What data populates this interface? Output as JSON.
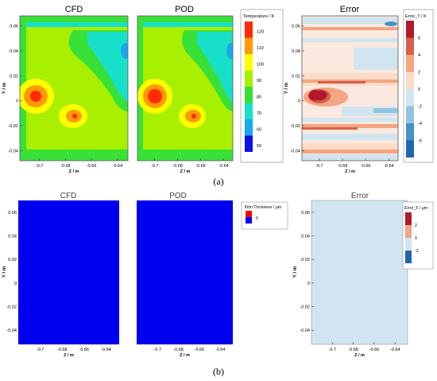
{
  "panel_a": {
    "label": "(a)",
    "titles": [
      "CFD",
      "POD",
      "Error"
    ],
    "xlabel": "Z / m",
    "ylabel": "Y / m",
    "xticks": [
      "-0.7",
      "-0.68",
      "-0.66",
      "-0.64"
    ],
    "yticks": [
      "0.06",
      "0.04",
      "0.02",
      "0",
      "-0.02",
      "-0.04"
    ],
    "xticks_error": [
      "-0.7",
      "-0.68",
      "-0.66",
      "-0.64"
    ],
    "legend_temperature": {
      "title": "Temperature / K",
      "labels": [
        "120",
        "110",
        "100",
        "90",
        "80",
        "70",
        "60",
        "50"
      ],
      "colors": [
        "#ff2a00",
        "#ff9a00",
        "#ffff00",
        "#a8f000",
        "#38e038",
        "#18e0c8",
        "#18a8f0",
        "#1010e8"
      ]
    },
    "legend_error": {
      "title": "Error_T / K",
      "labels": [
        "6",
        "4",
        "2",
        "0",
        "-2",
        "-4",
        "-6"
      ],
      "colors": [
        "#b2182b",
        "#d6604d",
        "#f4a582",
        "#fddbc7",
        "#d1e5f0",
        "#92c5de",
        "#4393c3",
        "#2166ac"
      ]
    }
  },
  "panel_b": {
    "label": "(b)",
    "titles": [
      "CFD",
      "POD",
      "Error"
    ],
    "xlabel": "Z / m",
    "ylabel": "Y / m",
    "xticks": [
      "-0.7",
      "-0.68",
      "-0.66",
      "-0.64"
    ],
    "yticks": [
      "0.06",
      "0.04",
      "0.02",
      "0",
      "-0.02",
      "-0.04"
    ],
    "legend_film": {
      "title": "Film Thickness / μm",
      "labels": [
        "0"
      ],
      "colors": [
        "#ff0000",
        "#0000ff"
      ]
    },
    "legend_error": {
      "title": "Error_F / μm",
      "labels": [
        "2",
        "0",
        "-2"
      ],
      "colors": [
        "#b2182b",
        "#f4a582",
        "#d1e5f0",
        "#2166ac"
      ]
    }
  },
  "chart_data": [
    {
      "type": "heatmap",
      "title": "CFD",
      "xlabel": "Z / m",
      "ylabel": "Y / m",
      "xlim": [
        -0.715,
        -0.632
      ],
      "ylim": [
        -0.048,
        0.068
      ],
      "colorbar": "Temperature / K",
      "hotspots": [
        {
          "z": -0.7,
          "y": 0.0,
          "temperature": 120
        },
        {
          "z": -0.67,
          "y": -0.018,
          "temperature": 120
        }
      ]
    },
    {
      "type": "heatmap",
      "title": "POD",
      "xlabel": "Z / m",
      "ylabel": "Y / m",
      "xlim": [
        -0.715,
        -0.632
      ],
      "ylim": [
        -0.048,
        0.068
      ],
      "colorbar": "Temperature / K",
      "hotspots": [
        {
          "z": -0.7,
          "y": 0.0,
          "temperature": 120
        },
        {
          "z": -0.67,
          "y": -0.018,
          "temperature": 120
        }
      ]
    },
    {
      "type": "heatmap",
      "title": "Error",
      "xlabel": "Z / m",
      "ylabel": "Y / m",
      "xlim": [
        -0.715,
        -0.632
      ],
      "ylim": [
        -0.048,
        0.068
      ],
      "colorbar": "Error_T / K",
      "peak_error": {
        "z": -0.7,
        "y": 0.0,
        "value": 6
      }
    },
    {
      "type": "heatmap",
      "title": "CFD",
      "xlabel": "Z / m",
      "ylabel": "Y / m",
      "colorbar": "Film Thickness / μm",
      "uniform_value": 0
    },
    {
      "type": "heatmap",
      "title": "POD",
      "xlabel": "Z / m",
      "ylabel": "Y / m",
      "colorbar": "Film Thickness / μm",
      "uniform_value": 0
    },
    {
      "type": "heatmap",
      "title": "Error",
      "xlabel": "Z / m",
      "ylabel": "Y / m",
      "colorbar": "Error_F / μm",
      "uniform_value": 0
    }
  ]
}
